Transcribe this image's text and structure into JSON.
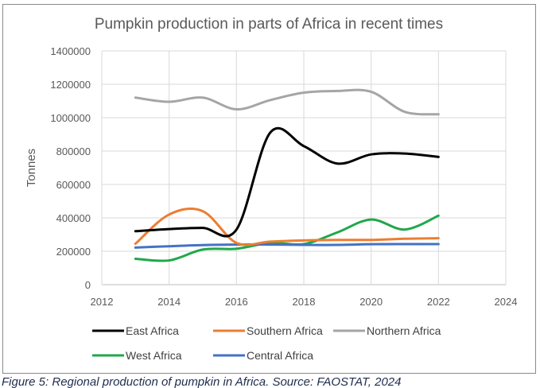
{
  "chart_data": {
    "type": "line",
    "title": "Pumpkin production in parts of Africa in recent times",
    "xlabel": "",
    "ylabel": "Tonnes",
    "xlim": [
      2012,
      2024
    ],
    "ylim": [
      0,
      1400000
    ],
    "x_ticks": [
      2012,
      2014,
      2016,
      2018,
      2020,
      2022,
      2024
    ],
    "y_ticks": [
      0,
      200000,
      400000,
      600000,
      800000,
      1000000,
      1200000,
      1400000
    ],
    "grid": true,
    "legend_position": "bottom",
    "x": [
      2013,
      2014,
      2015,
      2016,
      2017,
      2018,
      2019,
      2020,
      2021,
      2022
    ],
    "series": [
      {
        "name": "East Africa",
        "color": "#000000",
        "values": [
          320000,
          333000,
          340000,
          330000,
          910000,
          830000,
          725000,
          780000,
          785000,
          765000
        ]
      },
      {
        "name": "Southern Africa",
        "color": "#ed7d31",
        "values": [
          245000,
          420000,
          440000,
          250000,
          258000,
          265000,
          268000,
          268000,
          275000,
          278000
        ]
      },
      {
        "name": "Northern Africa",
        "color": "#a5a5a5",
        "values": [
          1120000,
          1095000,
          1120000,
          1050000,
          1105000,
          1150000,
          1160000,
          1155000,
          1035000,
          1020000
        ]
      },
      {
        "name": "West Africa",
        "color": "#21a74a",
        "values": [
          155000,
          145000,
          210000,
          215000,
          250000,
          243000,
          313000,
          390000,
          330000,
          413000
        ]
      },
      {
        "name": "Central Africa",
        "color": "#4472c4",
        "values": [
          222000,
          230000,
          237000,
          240000,
          240000,
          238000,
          238000,
          242000,
          243000,
          243000
        ]
      }
    ]
  },
  "caption": "Figure 5: Regional production of pumpkin in Africa. Source: FAOSTAT, 2024"
}
